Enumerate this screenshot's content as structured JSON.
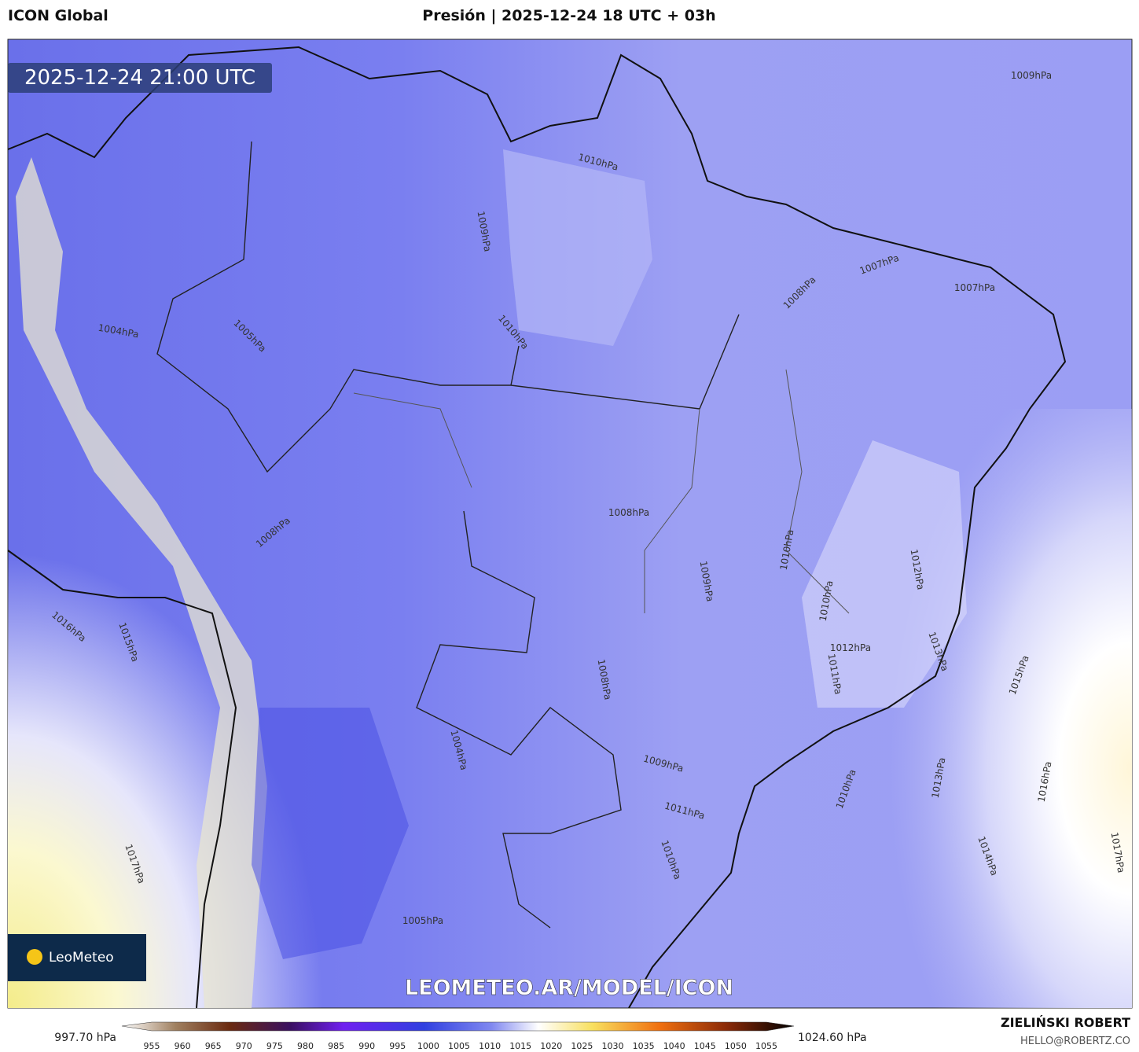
{
  "header": {
    "model": "ICON Global",
    "title": "Presión | 2025-12-24 18 UTC + 03h"
  },
  "map": {
    "timestamp": "2025-12-24 21:00 UTC",
    "watermark": "LEOMETEO.AR/MODEL/ICON",
    "logo": "LeoMeteo",
    "contour_labels": [
      "1009hPa",
      "1010hPa",
      "1009hPa",
      "1007hPa",
      "1007hPa",
      "1008hPa",
      "1010hPa",
      "1005hPa",
      "1004hPa",
      "1008hPa",
      "1010hPa",
      "1012hPa",
      "1009hPa",
      "1010hPa",
      "1012hPa",
      "1011hPa",
      "1013hPa",
      "1015hPa",
      "1008hPa",
      "1009hPa",
      "1010hPa",
      "1013hPa",
      "1016hPa",
      "1011hPa",
      "1014hPa",
      "1017hPa",
      "1010hPa",
      "1005hPa",
      "1016hPa",
      "1015hPa",
      "1017hPa",
      "1008hPa",
      "1004hPa"
    ]
  },
  "colorbar": {
    "min_label": "997.70 hPa",
    "max_label": "1024.60 hPa",
    "ticks": [
      "955",
      "960",
      "965",
      "970",
      "975",
      "980",
      "985",
      "990",
      "995",
      "1000",
      "1005",
      "1010",
      "1015",
      "1020",
      "1025",
      "1030",
      "1035",
      "1040",
      "1045",
      "1050",
      "1055"
    ]
  },
  "footer": {
    "author": "ZIELIŃSKI ROBERT",
    "email": "HELLO@ROBERTZ.CO"
  }
}
